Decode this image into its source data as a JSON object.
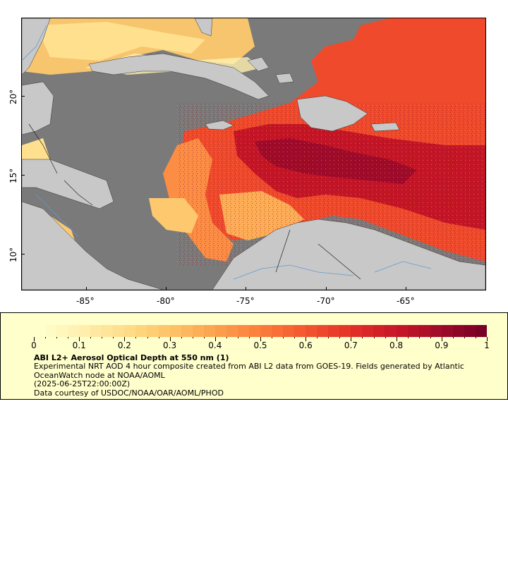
{
  "map": {
    "lon_ticks": [
      "-85°",
      "-80°",
      "-75°",
      "-70°",
      "-65°"
    ],
    "lat_ticks": [
      "20°",
      "15°",
      "10°"
    ],
    "land_color": "#c8c8c8",
    "nodata_color": "#7a7a7a",
    "water_line_color": "#6699cc"
  },
  "legend": {
    "scale_labels": [
      "0",
      "0.1",
      "0.2",
      "0.3",
      "0.4",
      "0.5",
      "0.6",
      "0.7",
      "0.8",
      "0.9",
      "1"
    ],
    "title": "ABI L2+ Aerosol Optical Depth at 550 nm (1)",
    "description_line1": "Experimental NRT AOD 4 hour composite created from ABI L2 data from GOES-19. Fields generated by Atlantic",
    "description_line2": "OceanWatch node at NOAA/AOML",
    "description_line3": "(2025-06-25T22:00:00Z)",
    "description_line4": "Data courtesy of USDOC/NOAA/OAR/AOML/PHOD",
    "colors": [
      "#ffffcc",
      "#fff0b0",
      "#ffe08f",
      "#fec96e",
      "#fdae56",
      "#fc8d44",
      "#f86c36",
      "#ef4a2c",
      "#de2a26",
      "#c41527",
      "#9e0a2a",
      "#780026"
    ],
    "background_color": "#ffffcc"
  }
}
